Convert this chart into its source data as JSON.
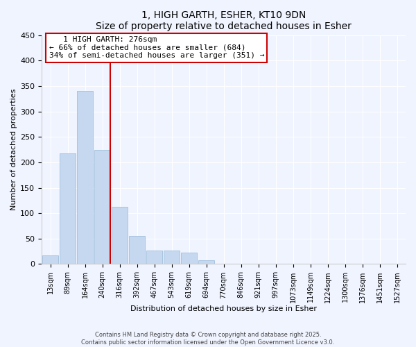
{
  "title": "1, HIGH GARTH, ESHER, KT10 9DN",
  "subtitle": "Size of property relative to detached houses in Esher",
  "xlabel": "Distribution of detached houses by size in Esher",
  "ylabel": "Number of detached properties",
  "bar_labels": [
    "13sqm",
    "89sqm",
    "164sqm",
    "240sqm",
    "316sqm",
    "392sqm",
    "467sqm",
    "543sqm",
    "619sqm",
    "694sqm",
    "770sqm",
    "846sqm",
    "921sqm",
    "997sqm",
    "1073sqm",
    "1149sqm",
    "1224sqm",
    "1300sqm",
    "1376sqm",
    "1451sqm",
    "1527sqm"
  ],
  "bar_values": [
    17,
    218,
    340,
    225,
    113,
    55,
    27,
    26,
    22,
    7,
    0,
    0,
    0,
    0,
    0,
    0,
    0,
    0,
    0,
    0,
    0
  ],
  "bar_color": "#c5d8f0",
  "bar_edge_color": "#95b8d8",
  "vline_bar_index": 3,
  "vline_color": "#cc0000",
  "ylim": [
    0,
    450
  ],
  "yticks": [
    0,
    50,
    100,
    150,
    200,
    250,
    300,
    350,
    400,
    450
  ],
  "annotation_title": "1 HIGH GARTH: 276sqm",
  "annotation_line1": "← 66% of detached houses are smaller (684)",
  "annotation_line2": "34% of semi-detached houses are larger (351) →",
  "footer_line1": "Contains HM Land Registry data © Crown copyright and database right 2025.",
  "footer_line2": "Contains public sector information licensed under the Open Government Licence v3.0.",
  "background_color": "#f0f4ff",
  "grid_color": "#ffffff"
}
